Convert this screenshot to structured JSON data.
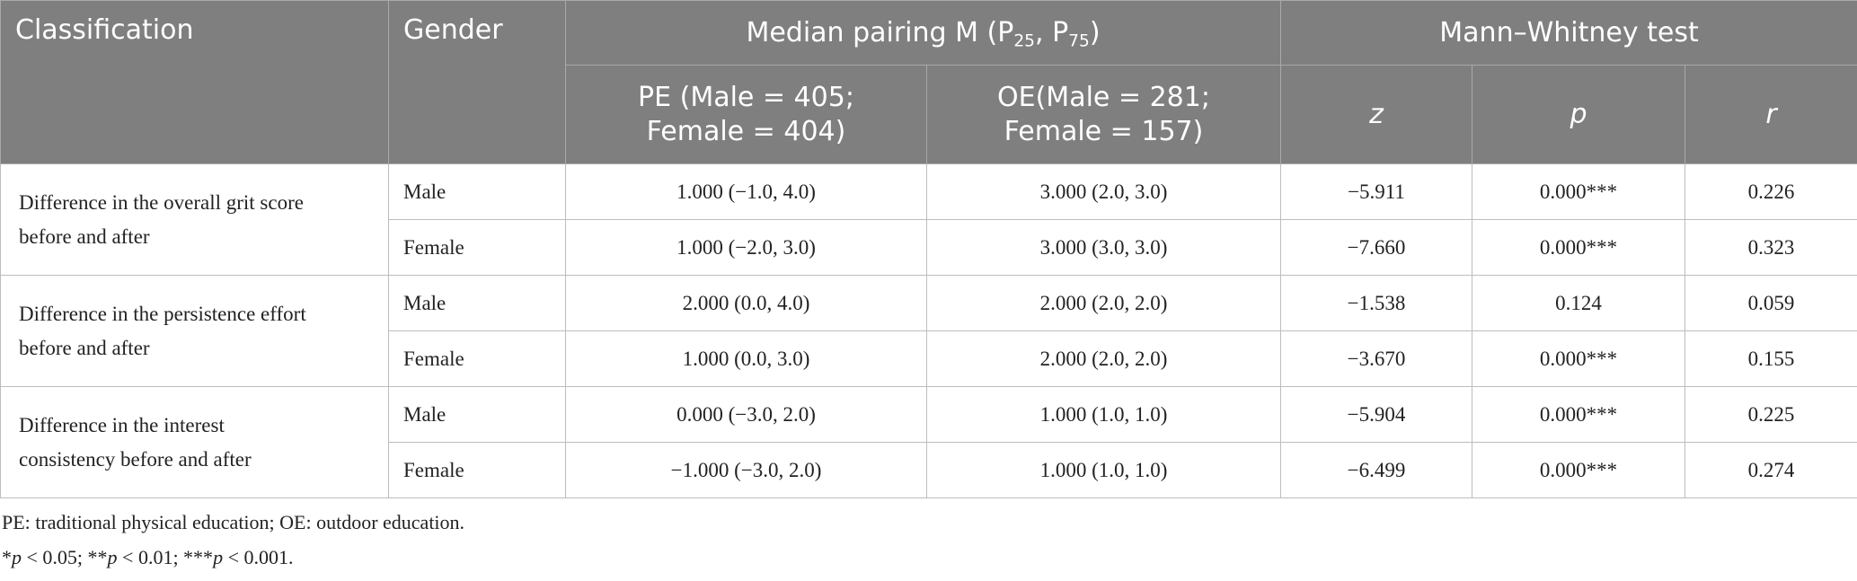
{
  "table": {
    "header": {
      "classification": "Classification",
      "gender": "Gender",
      "median_pairing": [
        "Median pairing M (P",
        "25",
        ", P",
        "75",
        ")"
      ],
      "mann_whitney": "Mann–Whitney test",
      "pe": [
        "PE (Male = 405;",
        "Female = 404)"
      ],
      "oe": [
        "OE(Male = 281;",
        "Female = 157)"
      ],
      "z": "z",
      "p": "p",
      "r": "r"
    },
    "groups": [
      {
        "classification": "Difference in the overall grit score before and after",
        "rows": [
          [
            "Male",
            "1.000 (−1.0, 4.0)",
            "3.000 (2.0, 3.0)",
            "−5.911",
            "0.000***",
            "0.226"
          ],
          [
            "Female",
            "1.000 (−2.0, 3.0)",
            "3.000 (3.0, 3.0)",
            "−7.660",
            "0.000***",
            "0.323"
          ]
        ]
      },
      {
        "classification": "Difference in the persistence effort before and after",
        "rows": [
          [
            "Male",
            "2.000 (0.0, 4.0)",
            "2.000 (2.0, 2.0)",
            "−1.538",
            "0.124",
            "0.059"
          ],
          [
            "Female",
            "1.000 (0.0, 3.0)",
            "2.000 (2.0, 2.0)",
            "−3.670",
            "0.000***",
            "0.155"
          ]
        ]
      },
      {
        "classification": "Difference in the interest consistency before and after",
        "rows": [
          [
            "Male",
            "0.000 (−3.0, 2.0)",
            "1.000 (1.0, 1.0)",
            "−5.904",
            "0.000***",
            "0.225"
          ],
          [
            "Female",
            "−1.000 (−3.0, 2.0)",
            "1.000 (1.0, 1.0)",
            "−6.499",
            "0.000***",
            "0.274"
          ]
        ]
      }
    ]
  },
  "notes": [
    "PE: traditional physical education; OE: outdoor education.",
    [
      "*",
      "p",
      " < 0.05; **",
      "p",
      " < 0.01; ***",
      "p",
      " < 0.001."
    ]
  ]
}
